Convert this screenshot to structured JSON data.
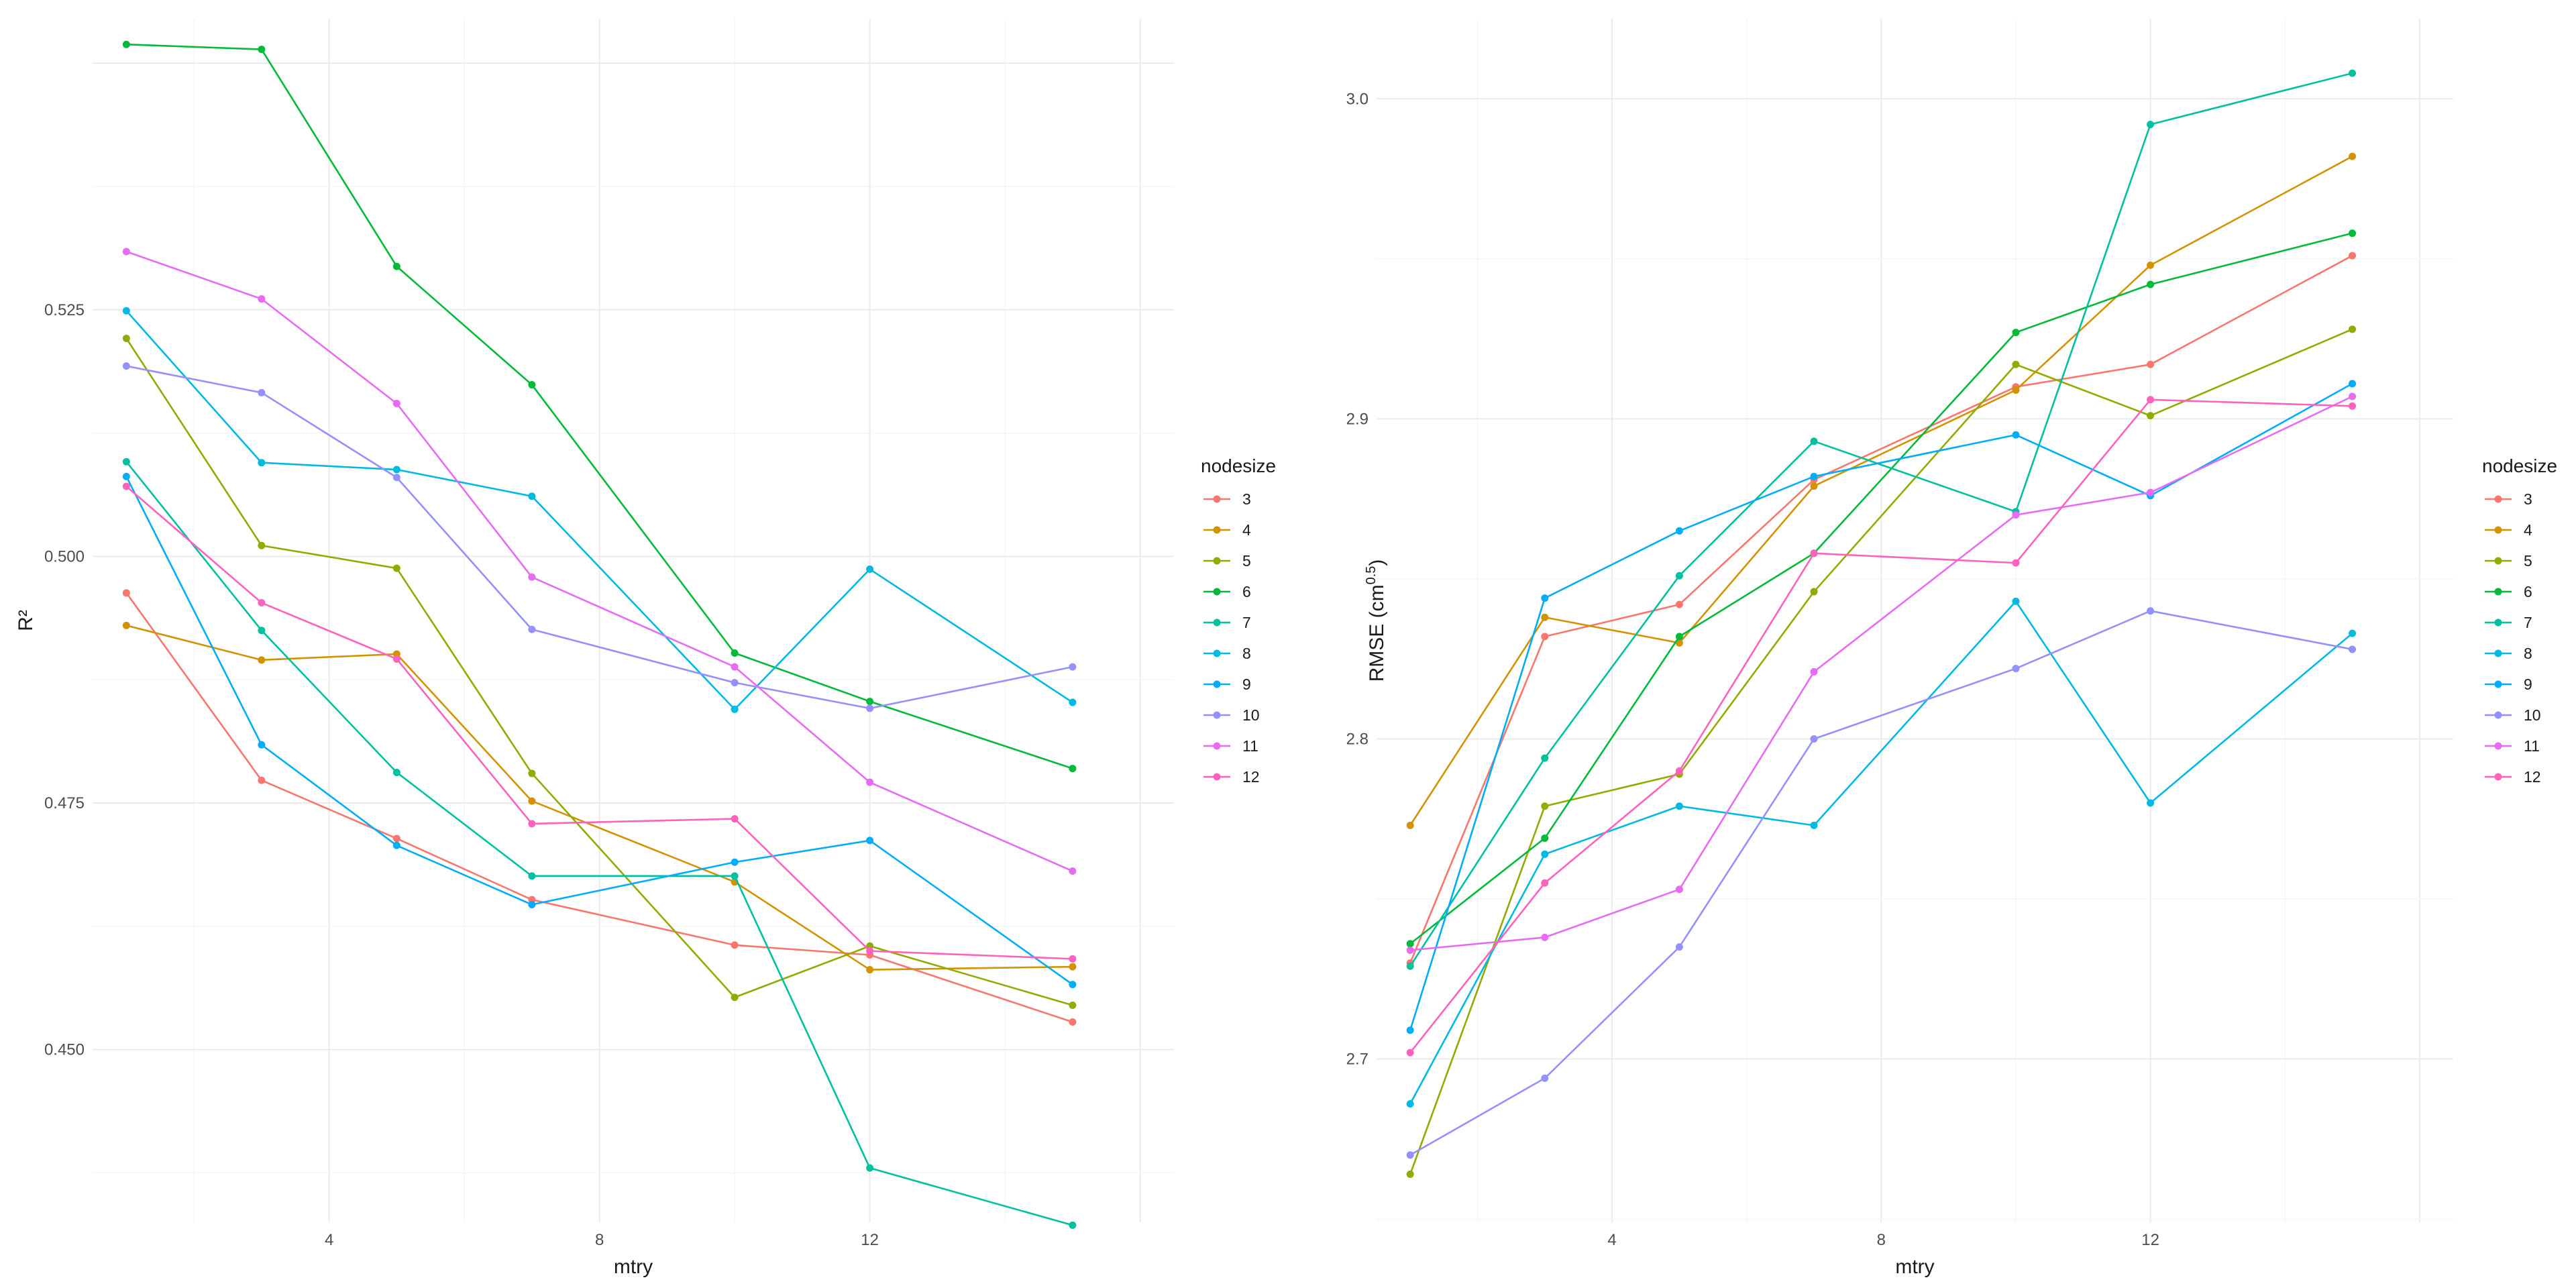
{
  "chart_data": [
    {
      "type": "line",
      "xlabel": "mtry",
      "ylabel": "R²",
      "xlim": [
        0.5,
        16.5
      ],
      "ylim": [
        0.4325,
        0.5545
      ],
      "x_ticks": [
        4,
        8,
        12
      ],
      "x_tick_labels": [
        "4",
        "8",
        "12"
      ],
      "y_ticks": [
        0.45,
        0.475,
        0.5,
        0.525
      ],
      "y_tick_labels": [
        "0.450",
        "0.475",
        "0.500",
        "0.525"
      ],
      "grid": true,
      "legend": {
        "title": "nodesize",
        "position": "right"
      },
      "x": [
        1,
        3,
        5,
        7,
        10,
        12,
        15
      ],
      "series": [
        {
          "name": "3",
          "color": "#F8766D",
          "values": [
            0.4963,
            0.4773,
            0.4714,
            0.4652,
            0.4606,
            0.4596,
            0.4528
          ]
        },
        {
          "name": "4",
          "color": "#D39200",
          "values": [
            0.493,
            0.4895,
            0.4901,
            0.4752,
            0.467,
            0.4581,
            0.4584
          ]
        },
        {
          "name": "5",
          "color": "#93AA00",
          "values": [
            0.5221,
            0.5011,
            0.4988,
            0.478,
            0.4553,
            0.4605,
            0.4545
          ]
        },
        {
          "name": "6",
          "color": "#00BA38",
          "values": [
            0.5519,
            0.5514,
            0.5294,
            0.5174,
            0.4902,
            0.4853,
            0.4785
          ]
        },
        {
          "name": "7",
          "color": "#00C19F",
          "values": [
            0.5096,
            0.4925,
            0.4781,
            0.4676,
            0.4676,
            0.438,
            0.4322
          ]
        },
        {
          "name": "8",
          "color": "#00B9E3",
          "values": [
            0.5249,
            0.5095,
            0.5088,
            0.5061,
            0.4845,
            0.4987,
            0.4852
          ]
        },
        {
          "name": "9",
          "color": "#00ADFA",
          "values": [
            0.5081,
            0.4809,
            0.4707,
            0.4647,
            0.469,
            0.4712,
            0.4566
          ]
        },
        {
          "name": "10",
          "color": "#9590FF",
          "values": [
            0.5193,
            0.5166,
            0.508,
            0.4926,
            0.4872,
            0.4846,
            0.4888
          ]
        },
        {
          "name": "11",
          "color": "#E76BF3",
          "values": [
            0.5309,
            0.5261,
            0.5155,
            0.4979,
            0.4888,
            0.4771,
            0.4681
          ]
        },
        {
          "name": "12",
          "color": "#FF62BC",
          "values": [
            0.5071,
            0.4953,
            0.4896,
            0.4729,
            0.4734,
            0.46,
            0.4592
          ]
        }
      ]
    },
    {
      "type": "line",
      "xlabel": "mtry",
      "ylabel": "RMSE (cm",
      "ylabel_sup": "0.5",
      "ylabel_suffix": ")",
      "xlim": [
        0.5,
        16.5
      ],
      "ylim": [
        2.649,
        3.025
      ],
      "x_ticks": [
        4,
        8,
        12
      ],
      "x_tick_labels": [
        "4",
        "8",
        "12"
      ],
      "y_ticks": [
        2.7,
        2.8,
        2.9,
        3.0
      ],
      "y_tick_labels": [
        "2.7",
        "2.8",
        "2.9",
        "3.0"
      ],
      "grid": true,
      "legend": {
        "title": "nodesize",
        "position": "right"
      },
      "x": [
        1,
        3,
        5,
        7,
        10,
        12,
        15
      ],
      "series": [
        {
          "name": "3",
          "color": "#F8766D",
          "values": [
            2.73,
            2.832,
            2.842,
            2.881,
            2.91,
            2.917,
            2.951
          ]
        },
        {
          "name": "4",
          "color": "#D39200",
          "values": [
            2.773,
            2.838,
            2.83,
            2.879,
            2.909,
            2.948,
            2.982
          ]
        },
        {
          "name": "5",
          "color": "#93AA00",
          "values": [
            2.664,
            2.779,
            2.789,
            2.846,
            2.917,
            2.901,
            2.928
          ]
        },
        {
          "name": "6",
          "color": "#00BA38",
          "values": [
            2.736,
            2.769,
            2.832,
            2.858,
            2.927,
            2.942,
            2.958
          ]
        },
        {
          "name": "7",
          "color": "#00C19F",
          "values": [
            2.729,
            2.794,
            2.851,
            2.893,
            2.871,
            2.992,
            3.008
          ]
        },
        {
          "name": "8",
          "color": "#00B9E3",
          "values": [
            2.686,
            2.764,
            2.779,
            2.773,
            2.843,
            2.78,
            2.833
          ]
        },
        {
          "name": "9",
          "color": "#00ADFA",
          "values": [
            2.709,
            2.844,
            2.865,
            2.882,
            2.895,
            2.876,
            2.911
          ]
        },
        {
          "name": "10",
          "color": "#9590FF",
          "values": [
            2.67,
            2.694,
            2.735,
            2.8,
            2.822,
            2.84,
            2.828
          ]
        },
        {
          "name": "11",
          "color": "#E76BF3",
          "values": [
            2.734,
            2.738,
            2.753,
            2.821,
            2.87,
            2.877,
            2.907
          ]
        },
        {
          "name": "12",
          "color": "#FF62BC",
          "values": [
            2.702,
            2.755,
            2.79,
            2.858,
            2.855,
            2.906,
            2.904
          ]
        }
      ]
    }
  ]
}
